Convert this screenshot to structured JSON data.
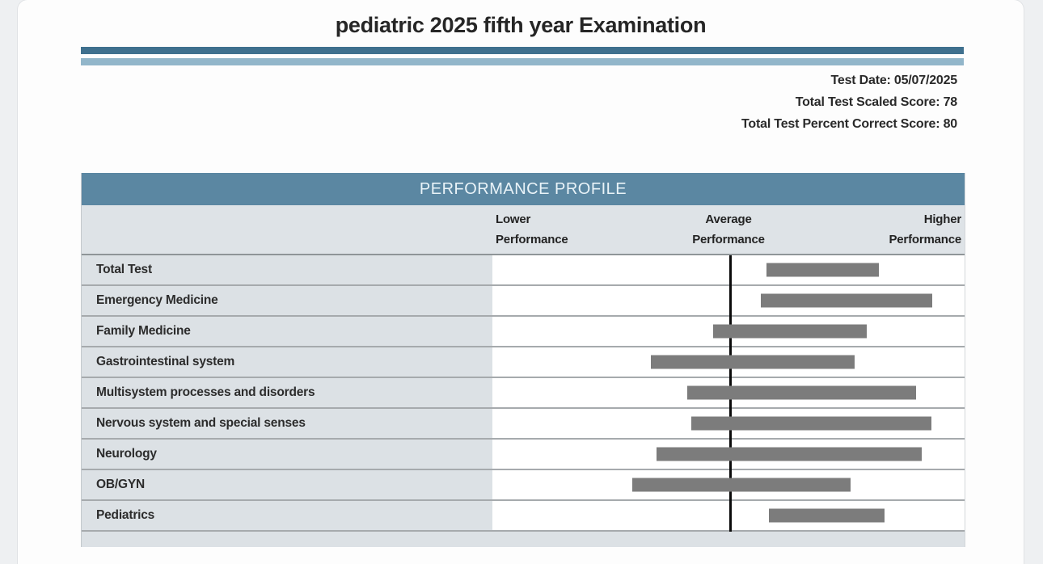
{
  "report": {
    "title": "pediatric 2025 fifth year Examination",
    "info_lines": [
      "Test Date: 05/07/2025",
      "Total Test Scaled Score: 78",
      "Total Test Percent Correct Score: 80"
    ]
  },
  "profile": {
    "header": "PERFORMANCE PROFILE",
    "columns": [
      "Lower Performance",
      "Average Performance",
      "Higher Performance"
    ],
    "average_line_pct": 50.4,
    "rows": [
      {
        "label": "Total Test",
        "bar_start_pct": 58.1,
        "bar_end_pct": 81.9
      },
      {
        "label": "Emergency Medicine",
        "bar_start_pct": 56.9,
        "bar_end_pct": 93.2
      },
      {
        "label": "Family Medicine",
        "bar_start_pct": 46.7,
        "bar_end_pct": 79.3
      },
      {
        "label": "Gastrointestinal system",
        "bar_start_pct": 33.5,
        "bar_end_pct": 76.8
      },
      {
        "label": "Multisystem processes and disorders",
        "bar_start_pct": 41.2,
        "bar_end_pct": 89.8
      },
      {
        "label": "Nervous system and special senses",
        "bar_start_pct": 42.2,
        "bar_end_pct": 93.0
      },
      {
        "label": "Neurology",
        "bar_start_pct": 34.7,
        "bar_end_pct": 90.9
      },
      {
        "label": "OB/GYN",
        "bar_start_pct": 29.6,
        "bar_end_pct": 75.9
      },
      {
        "label": "Pediatrics",
        "bar_start_pct": 58.6,
        "bar_end_pct": 83.1
      }
    ]
  },
  "colors": {
    "header_bar": "#5b87a2",
    "rule_dark": "#3f708e",
    "rule_light": "#92b6ca",
    "label_cell_bg": "#dce1e5",
    "column_header_bg": "#dee3e7",
    "bar_gray": "#7c7c7c",
    "average_line": "#0b0b0b",
    "page_bg": "#fdfdfd",
    "outer_bg": "#eef0f2"
  },
  "chart_data": {
    "type": "bar",
    "title": "PERFORMANCE PROFILE",
    "orientation": "horizontal-range",
    "xlabel": "",
    "ylabel": "",
    "axis_labels": [
      "Lower Performance",
      "Average Performance",
      "Higher Performance"
    ],
    "axis_range_pct": [
      0,
      100
    ],
    "average_line_pct": 50.4,
    "grid": false,
    "legend": "none",
    "categories": [
      "Total Test",
      "Emergency Medicine",
      "Family Medicine",
      "Gastrointestinal system",
      "Multisystem processes and disorders",
      "Nervous system and special senses",
      "Neurology",
      "OB/GYN",
      "Pediatrics"
    ],
    "series": [
      {
        "name": "performance band (pct of axis)",
        "ranges_pct": [
          [
            58.1,
            81.9
          ],
          [
            56.9,
            93.2
          ],
          [
            46.7,
            79.3
          ],
          [
            33.5,
            76.8
          ],
          [
            41.2,
            89.8
          ],
          [
            42.2,
            93.0
          ],
          [
            34.7,
            90.9
          ],
          [
            29.6,
            75.9
          ],
          [
            58.6,
            83.1
          ]
        ]
      }
    ]
  }
}
